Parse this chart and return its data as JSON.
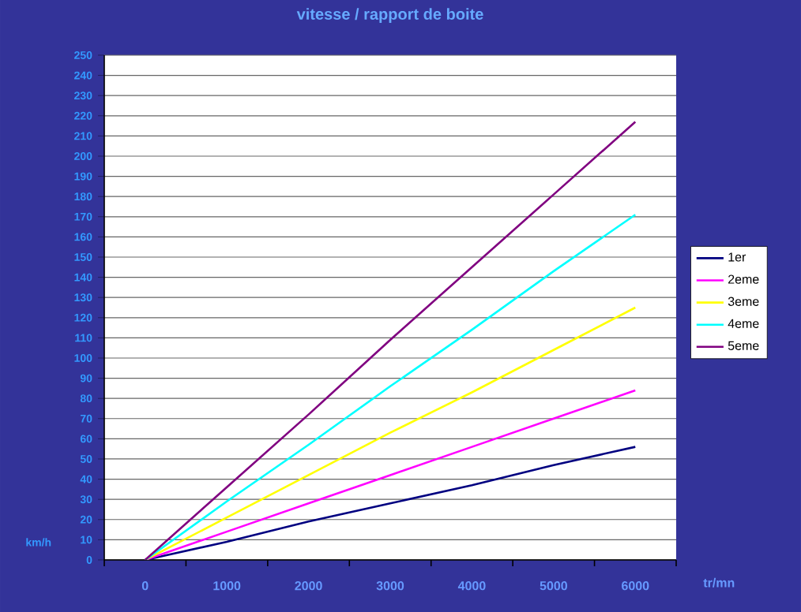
{
  "chart_data": {
    "type": "line",
    "title": "vitesse / rapport de boite",
    "xlabel": "tr/mn",
    "ylabel": "km/h",
    "categories": [
      "0",
      "1000",
      "2000",
      "3000",
      "4000",
      "5000",
      "6000"
    ],
    "series": [
      {
        "name": "1er",
        "color": "#000080",
        "values": [
          0,
          9,
          19,
          28,
          37,
          47,
          56
        ]
      },
      {
        "name": "2eme",
        "color": "#ff00ff",
        "values": [
          0,
          14,
          28,
          42,
          56,
          70,
          84
        ]
      },
      {
        "name": "3eme",
        "color": "#ffff00",
        "values": [
          0,
          21,
          42,
          63,
          83,
          104,
          125
        ]
      },
      {
        "name": "4eme",
        "color": "#00ffff",
        "values": [
          0,
          29,
          57,
          86,
          114,
          143,
          171
        ]
      },
      {
        "name": "5eme",
        "color": "#800080",
        "values": [
          0,
          36,
          72,
          109,
          145,
          181,
          217
        ]
      }
    ],
    "ylim": [
      0,
      250
    ],
    "yticks": [
      0,
      10,
      20,
      30,
      40,
      50,
      60,
      70,
      80,
      90,
      100,
      110,
      120,
      130,
      140,
      150,
      160,
      170,
      180,
      190,
      200,
      210,
      220,
      230,
      240,
      250
    ],
    "grid": "y",
    "legend": "right"
  }
}
